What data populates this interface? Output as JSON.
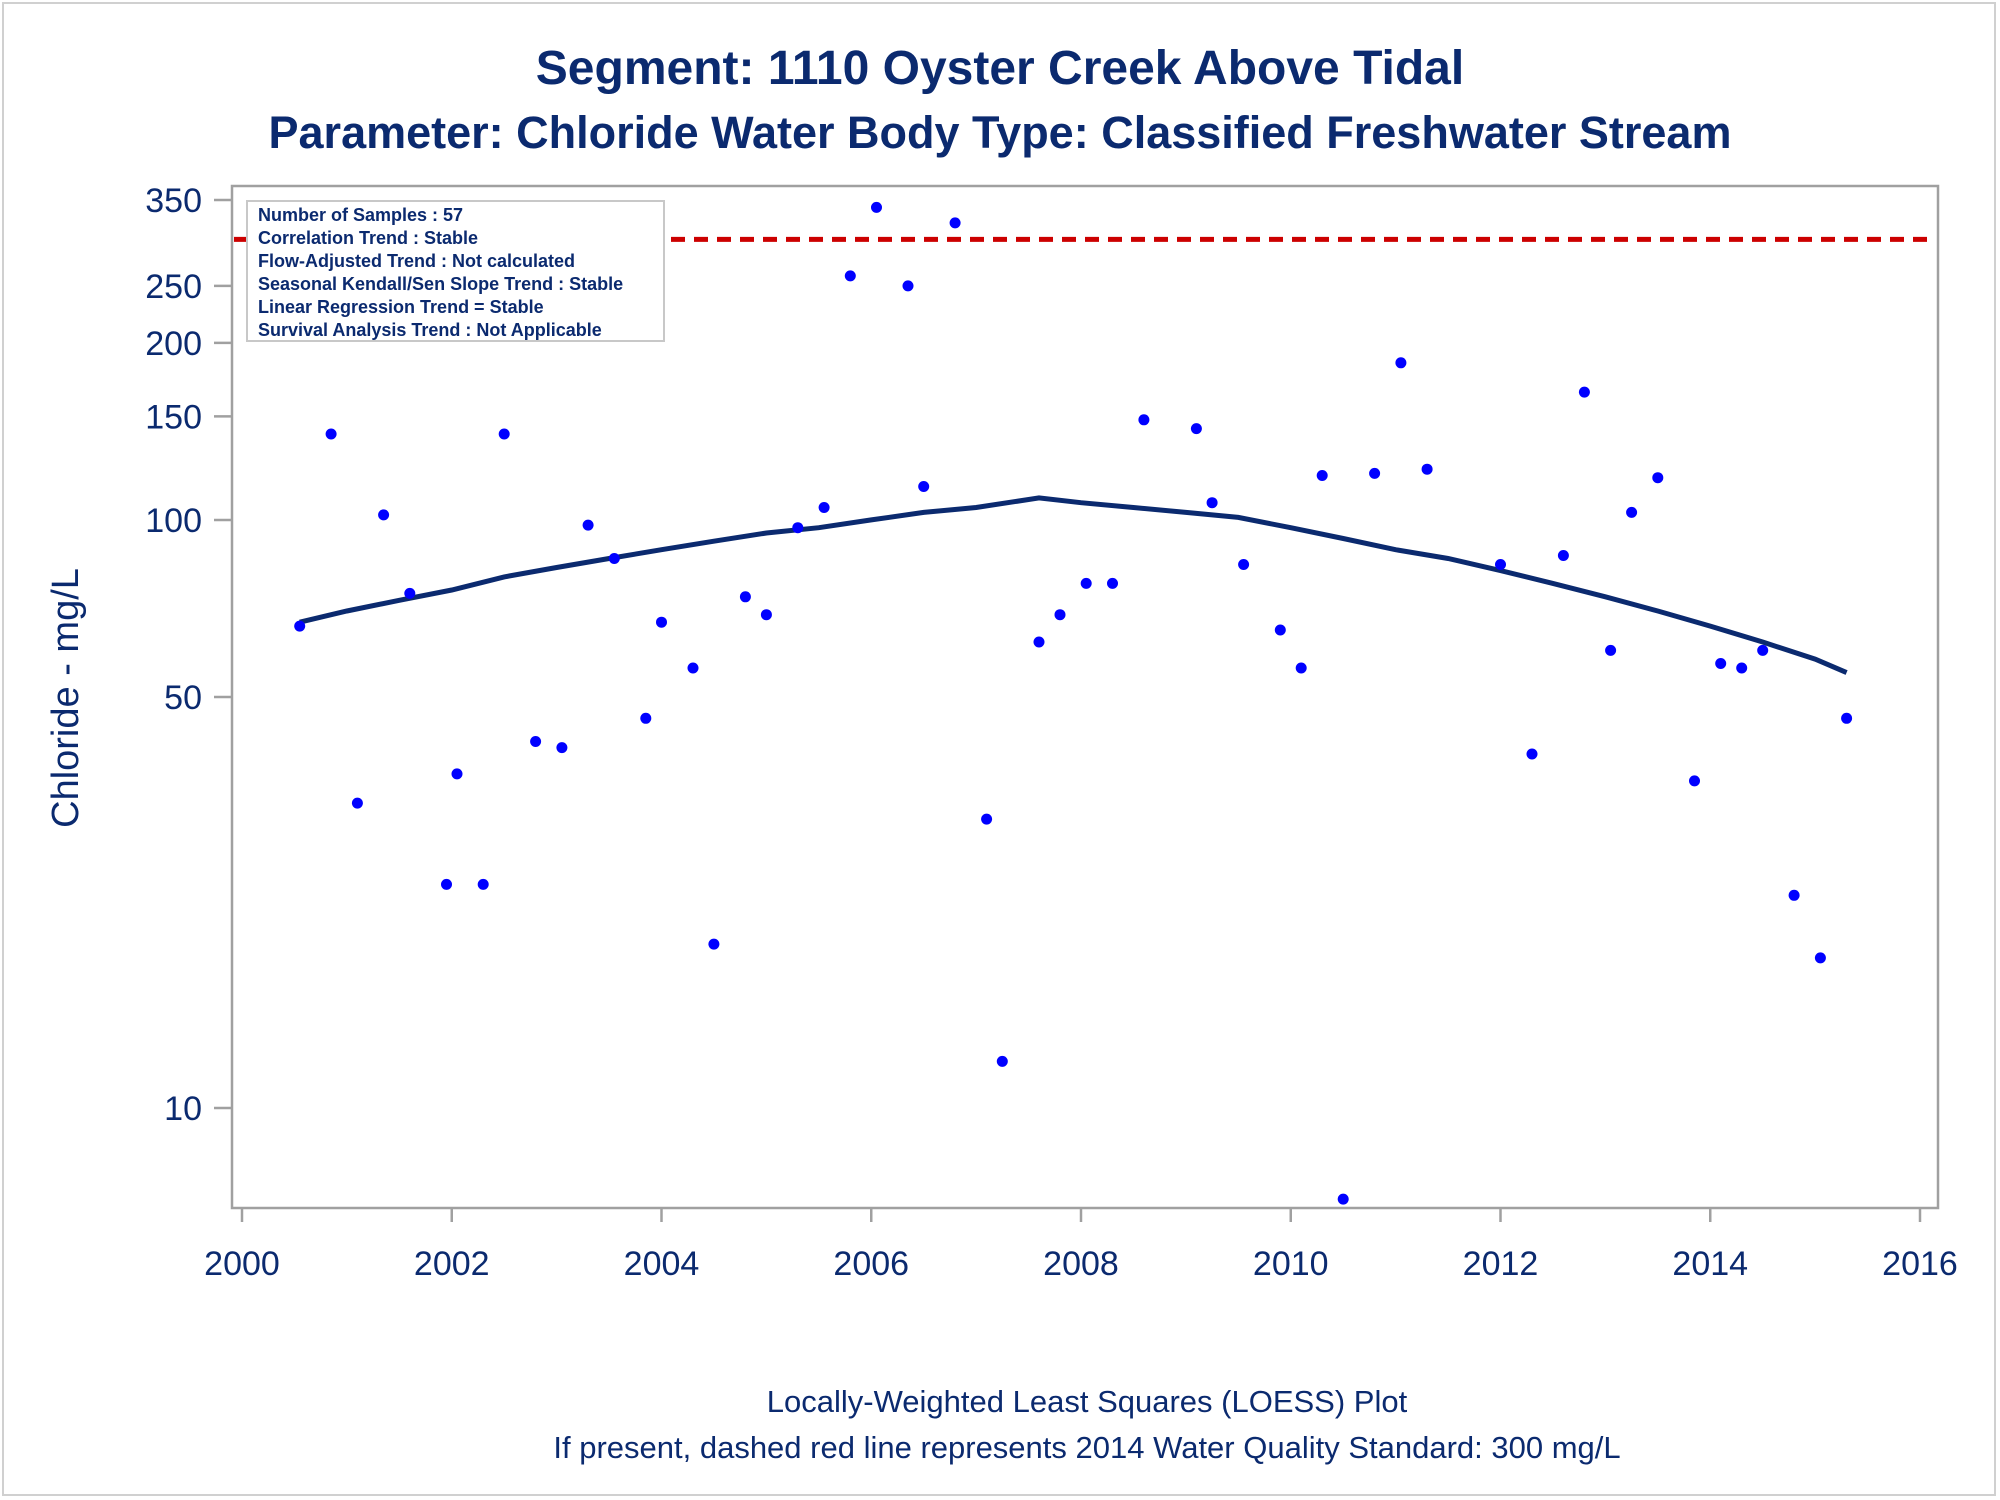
{
  "chart_data": {
    "type": "scatter",
    "title": "Segment: 1110  Oyster Creek Above Tidal",
    "subtitle": "Parameter: Chloride   Water Body Type: Classified Freshwater Stream",
    "xlabel": "",
    "ylabel": "Chloride - mg/L",
    "footnotes": [
      "Locally-Weighted Least Squares (LOESS) Plot",
      "If present, dashed red line represents 2014 Water Quality Standard: 300    mg/L"
    ],
    "y_scale": "log",
    "xlim": [
      2000,
      2016
    ],
    "ylim": [
      7,
      360
    ],
    "x_ticks": [
      "2000",
      "2002",
      "2004",
      "2006",
      "2008",
      "2010",
      "2012",
      "2014",
      "2016"
    ],
    "y_ticks": [
      "10",
      "50",
      "100",
      "150",
      "200",
      "250",
      "350"
    ],
    "grid": false,
    "stats_box": {
      "location": "top-left",
      "lines": [
        "Number of Samples : 57",
        "Correlation Trend : Stable",
        "Flow-Adjusted Trend : Not calculated",
        "Seasonal Kendall/Sen Slope Trend : Stable",
        "Linear Regression Trend = Stable",
        "Survival Analysis Trend : Not Applicable"
      ]
    },
    "reference_line": {
      "y": 300,
      "style": "dashed",
      "color": "#cc0000"
    },
    "colors": {
      "points": "#0000ff",
      "loess": "#0b2a6f",
      "text": "#0b2a6f",
      "axis": "#a0a0a0"
    },
    "series": [
      {
        "kind": "points",
        "x": [
          2000.55,
          2000.85,
          2001.1,
          2001.35,
          2001.6,
          2001.95,
          2002.05,
          2002.3,
          2002.5,
          2002.8,
          2003.05,
          2003.3,
          2003.55,
          2003.85,
          2004.0,
          2004.3,
          2004.5,
          2004.8,
          2005.0,
          2005.3,
          2005.55,
          2005.8,
          2006.05,
          2006.35,
          2006.5,
          2006.8,
          2007.1,
          2007.25,
          2007.6,
          2007.8,
          2008.05,
          2008.3,
          2008.6,
          2009.1,
          2009.25,
          2009.55,
          2009.9,
          2010.1,
          2010.3,
          2010.5,
          2010.8,
          2011.05,
          2011.3,
          2012.0,
          2012.3,
          2012.6,
          2012.8,
          2013.05,
          2013.25,
          2013.5,
          2013.85,
          2014.1,
          2014.3,
          2014.5,
          2014.8,
          2015.05,
          2015.3
        ],
        "y": [
          66,
          140,
          33,
          102,
          75,
          24,
          37,
          24,
          140,
          42,
          41,
          98,
          86,
          46,
          67,
          56,
          19,
          74,
          69,
          97,
          105,
          260,
          340,
          250,
          114,
          320,
          31,
          12,
          62,
          69,
          78,
          78,
          148,
          143,
          107,
          84,
          65,
          56,
          119,
          7,
          120,
          185,
          122,
          84,
          40,
          87,
          165,
          60,
          103,
          118,
          36,
          57,
          56,
          60,
          23,
          18,
          46
        ]
      },
      {
        "kind": "loess",
        "x": [
          2000.55,
          2001.0,
          2001.5,
          2002.0,
          2002.5,
          2003.0,
          2003.5,
          2004.0,
          2004.5,
          2005.0,
          2005.5,
          2006.0,
          2006.5,
          2007.0,
          2007.6,
          2008.0,
          2008.5,
          2009.0,
          2009.5,
          2010.0,
          2010.5,
          2011.0,
          2011.5,
          2012.0,
          2012.5,
          2013.0,
          2013.5,
          2014.0,
          2014.5,
          2015.0,
          2015.3
        ],
        "y": [
          67,
          70,
          73,
          76,
          80,
          83,
          86,
          89,
          92,
          95,
          97,
          100,
          103,
          105,
          109,
          107,
          105,
          103,
          101,
          97,
          93,
          89,
          86,
          82,
          78,
          74,
          70,
          66,
          62,
          58,
          55
        ]
      }
    ]
  }
}
